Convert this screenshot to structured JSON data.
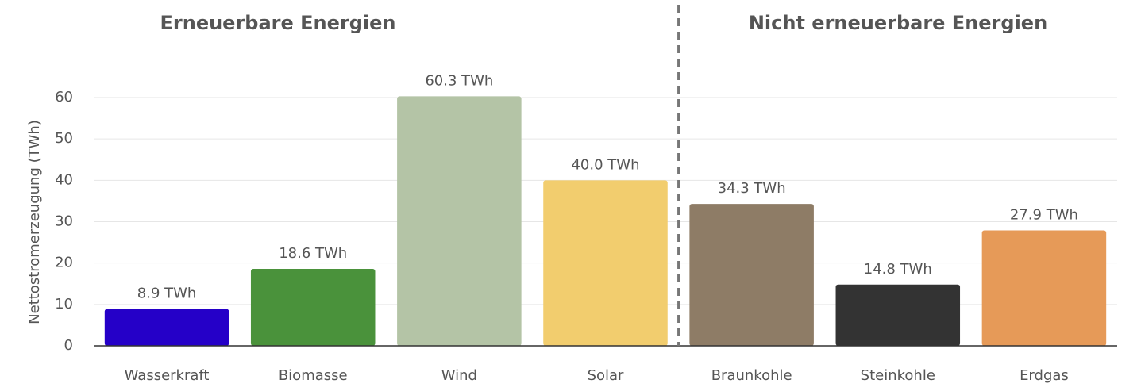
{
  "chart_data": {
    "type": "bar",
    "y_label": "Nettostromerzeugung (TWh)",
    "group_labels": [
      "Erneuerbare Energien",
      "Nicht erneuerbare Energien"
    ],
    "categories": [
      "Wasserkraft",
      "Biomasse",
      "Wind",
      "Solar",
      "Braunkohle",
      "Steinkohle",
      "Erdgas"
    ],
    "values": [
      8.9,
      18.6,
      60.3,
      40.0,
      34.3,
      14.8,
      27.9
    ],
    "value_labels": [
      "8.9 TWh",
      "18.6 TWh",
      "60.3 TWh",
      "40.0 TWh",
      "34.3 TWh",
      "14.8 TWh",
      "27.9 TWh"
    ],
    "colors": [
      "#2500c8",
      "#4a923b",
      "#b4c4a6",
      "#f2cd6e",
      "#8e7c66",
      "#333333",
      "#e69a58"
    ],
    "ylim": [
      0,
      60
    ],
    "yticks": [
      0,
      10,
      20,
      30,
      40,
      50,
      60
    ],
    "grid": true
  }
}
